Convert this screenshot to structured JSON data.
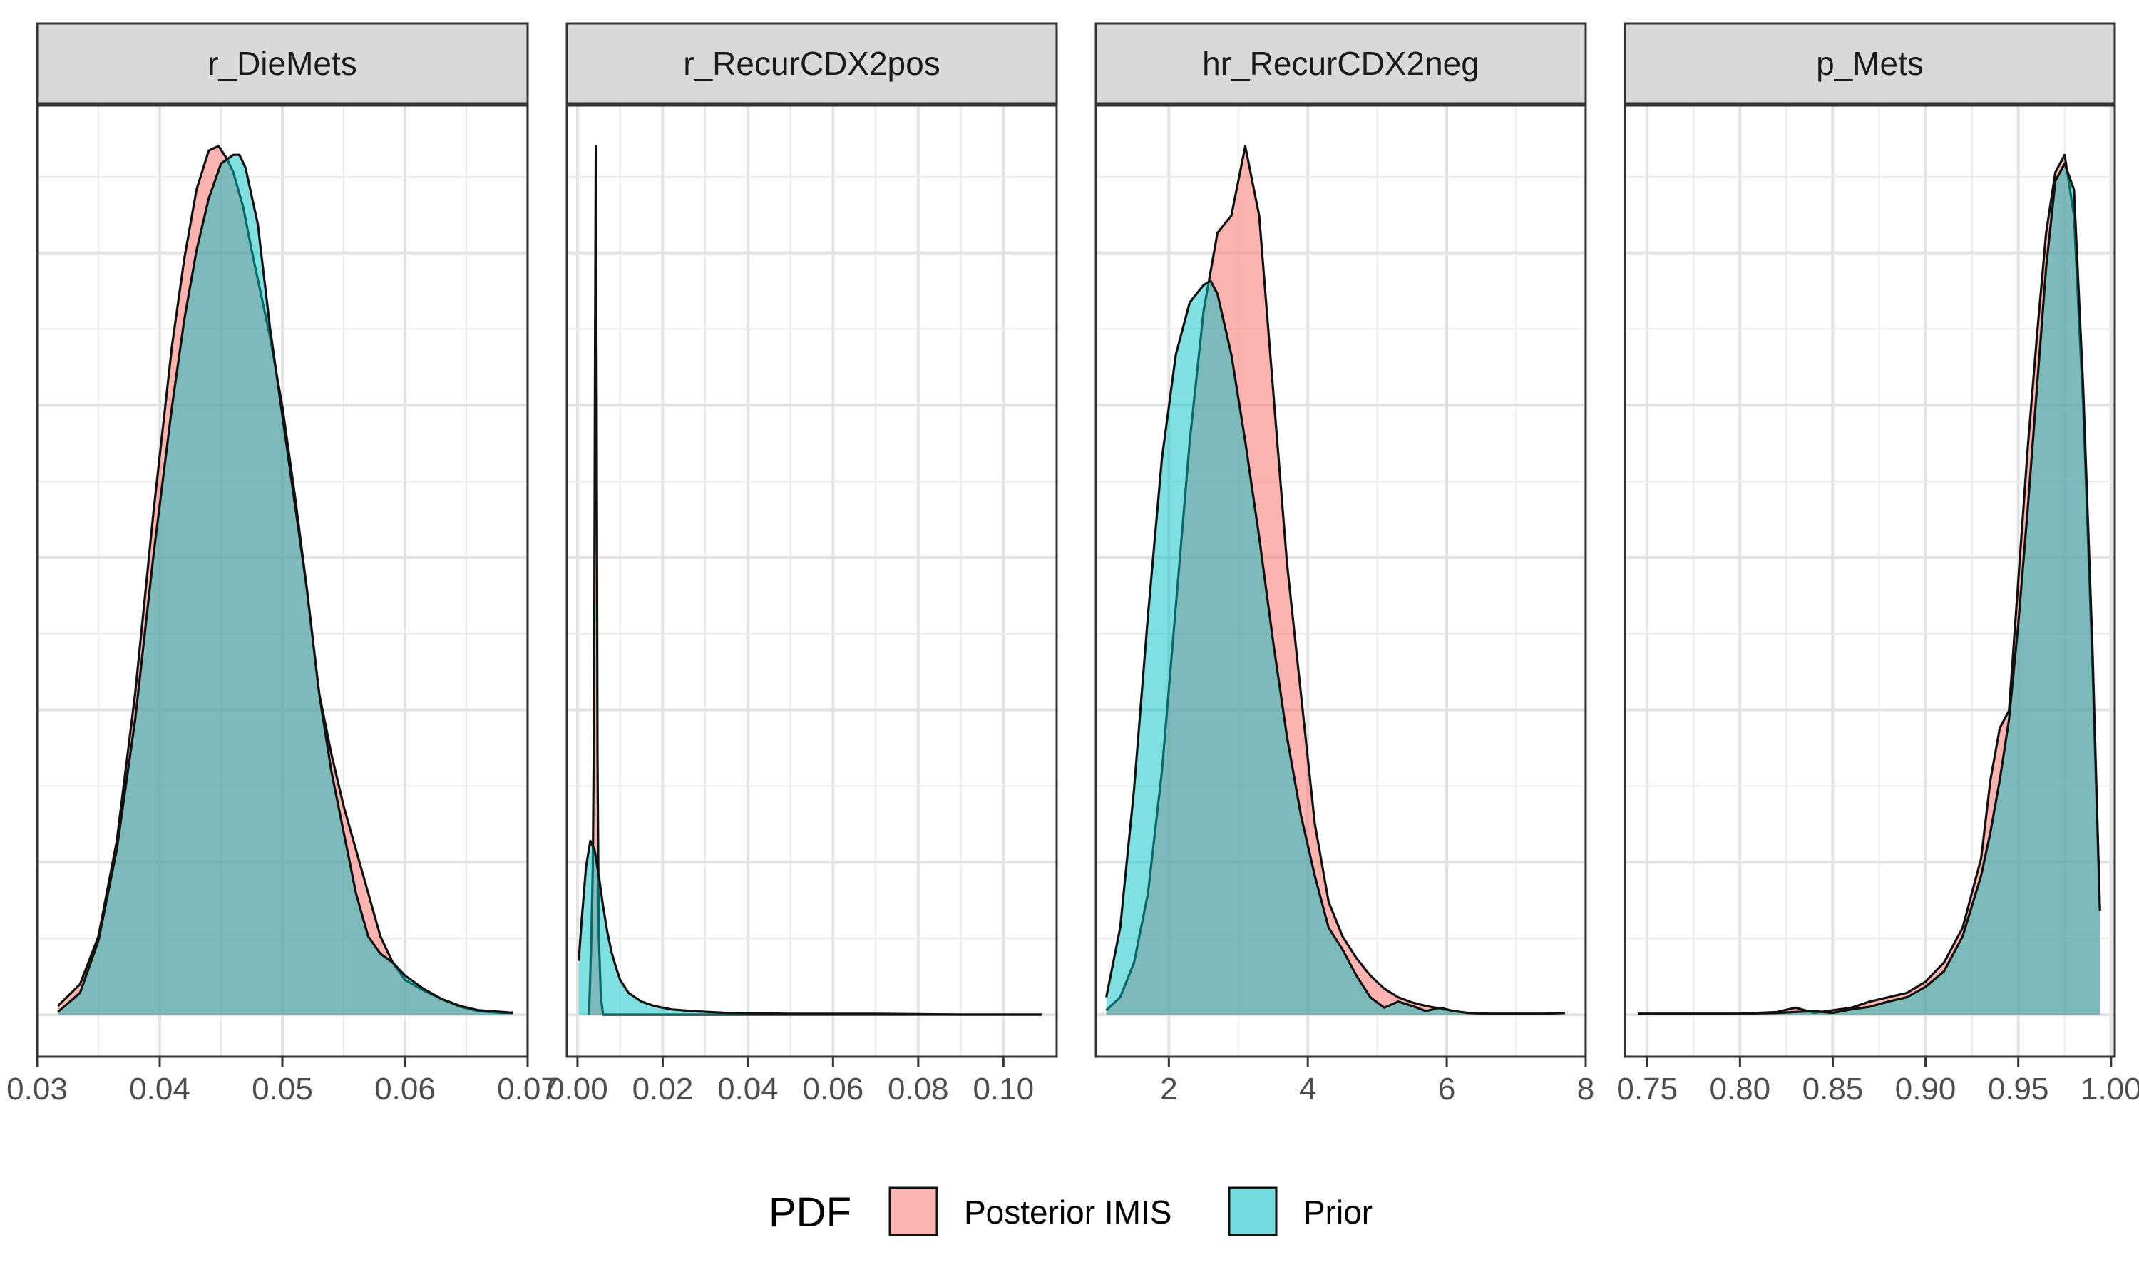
{
  "chart_data": {
    "type": "area",
    "subtype": "faceted-density",
    "grid": true,
    "legend": {
      "position": "bottom",
      "title": "PDF",
      "entries": [
        {
          "label": "Posterior IMIS",
          "color": "#F8766D"
        },
        {
          "label": "Prior",
          "color": "#00BFC4"
        }
      ]
    },
    "overlap_color": "#7AA8A6",
    "panels": [
      {
        "strip": "r_DieMets",
        "xlim": [
          0.03,
          0.07
        ],
        "xticks": [
          0.03,
          0.04,
          0.05,
          0.06,
          0.07
        ],
        "xtick_labels": [
          "0.03",
          "0.04",
          "0.05",
          "0.06",
          "0.07"
        ],
        "ymax": 1.0,
        "series": [
          {
            "name": "Posterior IMIS",
            "x": [
              0.0317,
              0.0335,
              0.035,
              0.0365,
              0.038,
              0.0395,
              0.041,
              0.042,
              0.043,
              0.044,
              0.0448,
              0.0455,
              0.046,
              0.0468,
              0.0475,
              0.049,
              0.05,
              0.051,
              0.052,
              0.053,
              0.054,
              0.055,
              0.056,
              0.057,
              0.058,
              0.059,
              0.06,
              0.0615,
              0.063,
              0.0645,
              0.066,
              0.068,
              0.0688
            ],
            "y": [
              0.01,
              0.035,
              0.09,
              0.2,
              0.37,
              0.58,
              0.77,
              0.87,
              0.95,
              0.995,
              1.0,
              0.985,
              0.97,
              0.93,
              0.88,
              0.78,
              0.7,
              0.6,
              0.49,
              0.37,
              0.3,
              0.24,
              0.19,
              0.14,
              0.09,
              0.06,
              0.04,
              0.028,
              0.018,
              0.009,
              0.004,
              0.002,
              0.0025
            ]
          },
          {
            "name": "Prior",
            "x": [
              0.0317,
              0.0335,
              0.035,
              0.0365,
              0.038,
              0.0395,
              0.041,
              0.042,
              0.043,
              0.044,
              0.045,
              0.046,
              0.0465,
              0.047,
              0.048,
              0.049,
              0.05,
              0.051,
              0.052,
              0.053,
              0.054,
              0.055,
              0.056,
              0.057,
              0.058,
              0.059,
              0.06,
              0.0615,
              0.063,
              0.0645,
              0.066,
              0.068,
              0.0688
            ],
            "y": [
              0.003,
              0.025,
              0.085,
              0.19,
              0.34,
              0.53,
              0.7,
              0.8,
              0.88,
              0.94,
              0.98,
              0.99,
              0.99,
              0.975,
              0.91,
              0.79,
              0.69,
              0.59,
              0.49,
              0.37,
              0.28,
              0.21,
              0.14,
              0.09,
              0.07,
              0.06,
              0.045,
              0.03,
              0.018,
              0.01,
              0.005,
              0.003,
              0.002
            ]
          }
        ]
      },
      {
        "strip": "r_RecurCDX2pos",
        "xlim": [
          -0.0025,
          0.1125
        ],
        "xticks": [
          0.0,
          0.02,
          0.04,
          0.06,
          0.08,
          0.1
        ],
        "xtick_labels": [
          "0.00",
          "0.02",
          "0.04",
          "0.06",
          "0.08",
          "0.10"
        ],
        "ymax": 1.0,
        "series": [
          {
            "name": "Posterior IMIS",
            "x": [
              0.0027,
              0.0032,
              0.0036,
              0.0039,
              0.0041,
              0.0043,
              0.0045,
              0.0047,
              0.005,
              0.0055,
              0.006,
              0.01,
              0.02,
              0.04,
              0.06,
              0.08,
              0.1,
              0.109
            ],
            "y": [
              0.0,
              0.08,
              0.17,
              0.35,
              0.72,
              1.0,
              0.7,
              0.3,
              0.09,
              0.02,
              0.0,
              0.0,
              0.0,
              0.0,
              0.0,
              0.0,
              0.0,
              0.0
            ]
          },
          {
            "name": "Prior",
            "x": [
              0.0003,
              0.001,
              0.002,
              0.003,
              0.004,
              0.005,
              0.006,
              0.007,
              0.008,
              0.009,
              0.01,
              0.012,
              0.015,
              0.018,
              0.022,
              0.027,
              0.035,
              0.05,
              0.07,
              0.09,
              0.109
            ],
            "y": [
              0.062,
              0.11,
              0.17,
              0.2,
              0.19,
              0.16,
              0.125,
              0.095,
              0.072,
              0.055,
              0.04,
              0.025,
              0.015,
              0.01,
              0.006,
              0.004,
              0.002,
              0.001,
              0.001,
              0.0,
              0.0
            ]
          }
        ]
      },
      {
        "strip": "hr_RecurCDX2neg",
        "xlim": [
          0.95,
          8.0
        ],
        "xticks": [
          2,
          4,
          6,
          8
        ],
        "xtick_labels": [
          "2",
          "4",
          "6",
          "8"
        ],
        "ymax": 1.0,
        "series": [
          {
            "name": "Posterior IMIS",
            "x": [
              1.1,
              1.3,
              1.5,
              1.7,
              1.9,
              2.1,
              2.3,
              2.5,
              2.7,
              2.9,
              3.1,
              3.3,
              3.5,
              3.7,
              3.9,
              4.1,
              4.3,
              4.5,
              4.7,
              4.9,
              5.1,
              5.3,
              5.5,
              5.7,
              5.9,
              6.1,
              6.3,
              6.6,
              7.0,
              7.4,
              7.7
            ],
            "y": [
              0.005,
              0.02,
              0.06,
              0.14,
              0.28,
              0.47,
              0.66,
              0.81,
              0.9,
              0.92,
              1.0,
              0.92,
              0.72,
              0.52,
              0.37,
              0.22,
              0.13,
              0.09,
              0.065,
              0.045,
              0.03,
              0.02,
              0.014,
              0.01,
              0.007,
              0.004,
              0.002,
              0.001,
              0.001,
              0.001,
              0.002
            ]
          },
          {
            "name": "Prior",
            "x": [
              1.1,
              1.3,
              1.5,
              1.7,
              1.9,
              2.1,
              2.3,
              2.5,
              2.6,
              2.7,
              2.9,
              3.1,
              3.3,
              3.5,
              3.7,
              3.9,
              4.1,
              4.3,
              4.5,
              4.7,
              4.9,
              5.1,
              5.3,
              5.5,
              5.7,
              5.9,
              6.1,
              6.3,
              6.6,
              7.0,
              7.4,
              7.7
            ],
            "y": [
              0.02,
              0.1,
              0.26,
              0.46,
              0.64,
              0.76,
              0.82,
              0.84,
              0.845,
              0.83,
              0.76,
              0.66,
              0.55,
              0.43,
              0.32,
              0.23,
              0.16,
              0.1,
              0.075,
              0.045,
              0.02,
              0.008,
              0.015,
              0.01,
              0.004,
              0.008,
              0.004,
              0.002,
              0.001,
              0.001,
              0.001,
              0.002
            ]
          }
        ]
      },
      {
        "strip": "p_Mets",
        "xlim": [
          0.738,
          1.002
        ],
        "xticks": [
          0.75,
          0.8,
          0.85,
          0.9,
          0.95,
          1.0
        ],
        "xtick_labels": [
          "0.75",
          "0.80",
          "0.85",
          "0.90",
          "0.95",
          "1.00"
        ],
        "ymax": 1.0,
        "series": [
          {
            "name": "Posterior IMIS",
            "x": [
              0.745,
              0.76,
              0.78,
              0.8,
              0.82,
              0.83,
              0.84,
              0.85,
              0.86,
              0.87,
              0.88,
              0.89,
              0.9,
              0.91,
              0.92,
              0.93,
              0.935,
              0.94,
              0.945,
              0.95,
              0.955,
              0.96,
              0.965,
              0.97,
              0.975,
              0.98,
              0.985,
              0.99,
              0.994
            ],
            "y": [
              0.001,
              0.001,
              0.001,
              0.001,
              0.003,
              0.008,
              0.002,
              0.005,
              0.008,
              0.015,
              0.02,
              0.025,
              0.038,
              0.06,
              0.1,
              0.18,
              0.27,
              0.33,
              0.35,
              0.5,
              0.65,
              0.78,
              0.9,
              0.97,
              0.99,
              0.92,
              0.7,
              0.4,
              0.12
            ]
          },
          {
            "name": "Prior",
            "x": [
              0.745,
              0.76,
              0.78,
              0.8,
              0.82,
              0.83,
              0.84,
              0.85,
              0.86,
              0.87,
              0.88,
              0.89,
              0.9,
              0.91,
              0.92,
              0.93,
              0.935,
              0.94,
              0.945,
              0.95,
              0.955,
              0.96,
              0.965,
              0.97,
              0.975,
              0.98,
              0.985,
              0.99,
              0.994
            ],
            "y": [
              0.001,
              0.001,
              0.001,
              0.001,
              0.002,
              0.003,
              0.004,
              0.002,
              0.006,
              0.009,
              0.015,
              0.02,
              0.032,
              0.05,
              0.09,
              0.16,
              0.21,
              0.27,
              0.34,
              0.45,
              0.58,
              0.72,
              0.86,
              0.96,
              0.98,
              0.95,
              0.72,
              0.42,
              0.12
            ]
          }
        ]
      }
    ]
  }
}
